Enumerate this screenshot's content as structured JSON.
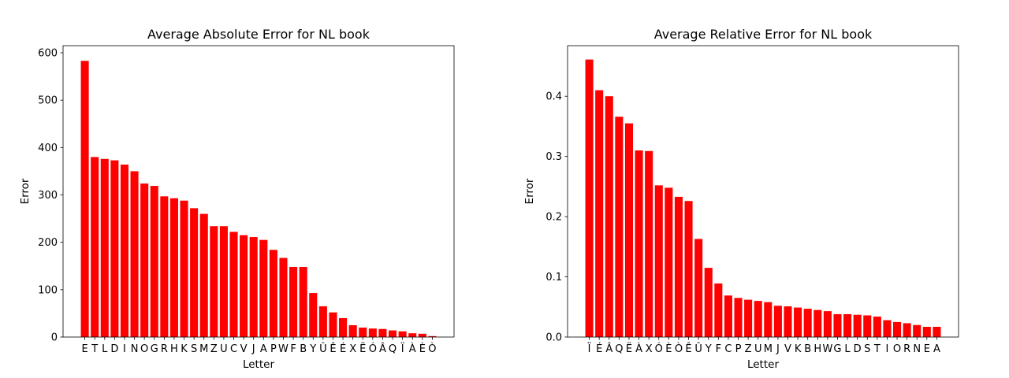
{
  "chart_data": [
    {
      "type": "bar",
      "title": "Average Absolute Error for NL book",
      "xlabel": "Letter",
      "ylabel": "Error",
      "ylim": [
        0,
        615
      ],
      "yticks": [
        0,
        100,
        200,
        300,
        400,
        500,
        600
      ],
      "ytick_labels": [
        "0",
        "100",
        "200",
        "300",
        "400",
        "500",
        "600"
      ],
      "grid": false,
      "bar_color": "#ff0000",
      "categories": [
        "E",
        "T",
        "L",
        "D",
        "I",
        "N",
        "O",
        "G",
        "R",
        "H",
        "K",
        "S",
        "M",
        "Z",
        "U",
        "C",
        "V",
        "J",
        "A",
        "P",
        "W",
        "F",
        "B",
        "Y",
        "Û",
        "Ê",
        "É",
        "X",
        "Ë",
        "Ó",
        "Â",
        "Q",
        "Ï",
        "À",
        "È",
        "Ò"
      ],
      "values": [
        583,
        380,
        376,
        373,
        364,
        350,
        324,
        319,
        297,
        293,
        288,
        272,
        260,
        234,
        234,
        222,
        215,
        211,
        205,
        184,
        167,
        148,
        148,
        93,
        65,
        52,
        40,
        25,
        20,
        18,
        17,
        14,
        12,
        8,
        7,
        2
      ]
    },
    {
      "type": "bar",
      "title": "Average Relative Error for NL book",
      "xlabel": "Letter",
      "ylabel": "Error",
      "ylim": [
        0,
        0.484
      ],
      "yticks": [
        0,
        0.1,
        0.2,
        0.3,
        0.4
      ],
      "ytick_labels": [
        "0.0",
        "0.1",
        "0.2",
        "0.3",
        "0.4"
      ],
      "grid": false,
      "bar_color": "#ff0000",
      "categories": [
        "Ï",
        "É",
        "Â",
        "Q",
        "Ë",
        "À",
        "X",
        "Ó",
        "È",
        "Ò",
        "Ê",
        "Û",
        "Y",
        "F",
        "C",
        "P",
        "Z",
        "U",
        "M",
        "J",
        "V",
        "K",
        "B",
        "H",
        "W",
        "G",
        "L",
        "D",
        "S",
        "T",
        "I",
        "O",
        "R",
        "N",
        "E",
        "A"
      ],
      "values": [
        0.461,
        0.41,
        0.4,
        0.366,
        0.355,
        0.31,
        0.309,
        0.252,
        0.248,
        0.233,
        0.226,
        0.163,
        0.115,
        0.089,
        0.069,
        0.065,
        0.062,
        0.06,
        0.058,
        0.052,
        0.051,
        0.049,
        0.047,
        0.045,
        0.043,
        0.038,
        0.038,
        0.037,
        0.036,
        0.034,
        0.028,
        0.025,
        0.023,
        0.02,
        0.017,
        0.017
      ]
    }
  ]
}
